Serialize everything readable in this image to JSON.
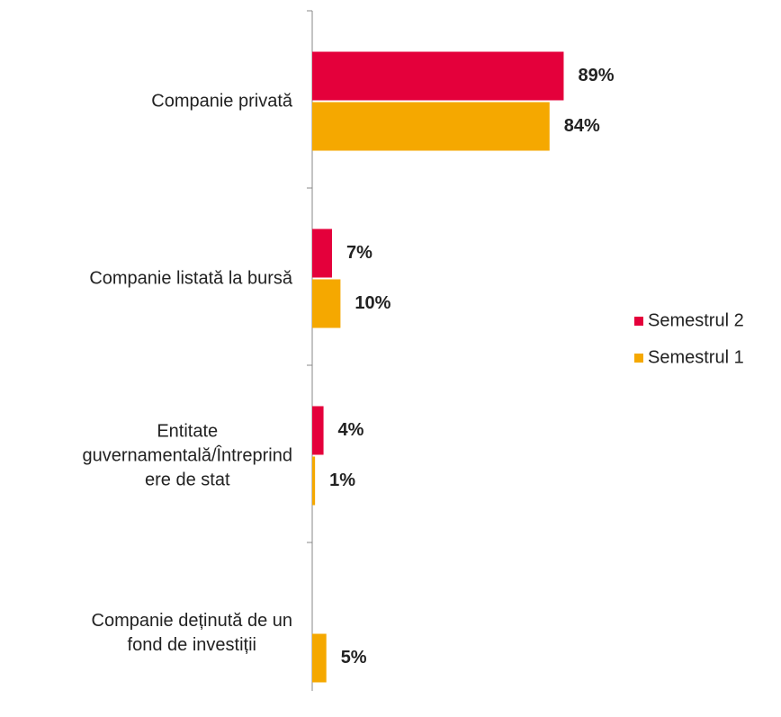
{
  "chart_data": {
    "type": "bar",
    "orientation": "horizontal",
    "categories": [
      "Companie privată",
      "Companie listată la bursă",
      "Entitate\nguvernamentală/Întreprind\nere de stat",
      "Companie deținută de un\nfond de investiții"
    ],
    "series": [
      {
        "name": "Semestrul 2",
        "color": "#e4003b",
        "values": [
          89,
          7,
          4,
          null
        ],
        "value_labels": [
          "89%",
          "7%",
          "4%",
          null
        ]
      },
      {
        "name": "Semestrul 1",
        "color": "#f5a800",
        "values": [
          84,
          10,
          1,
          5
        ],
        "value_labels": [
          "84%",
          "10%",
          "1%",
          "5%"
        ]
      }
    ],
    "xlim": [
      0,
      100
    ],
    "legend": "right"
  }
}
